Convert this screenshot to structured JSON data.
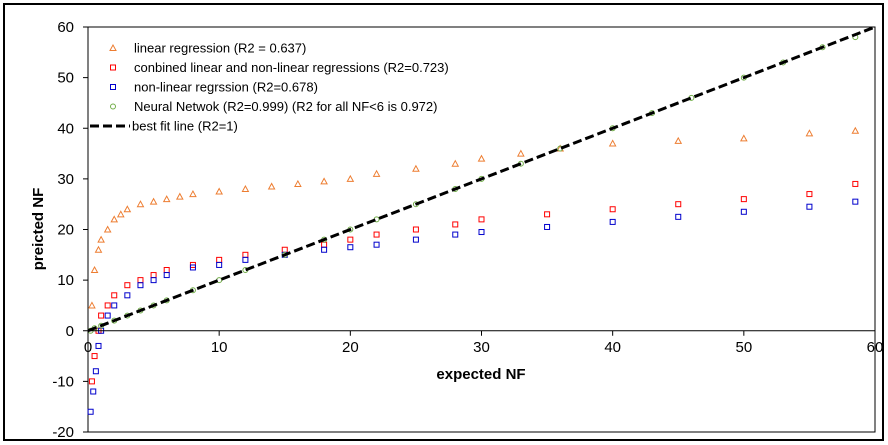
{
  "chart_data": {
    "type": "scatter",
    "title": "",
    "xlabel": "expected NF",
    "ylabel": "preicted NF",
    "xlim": [
      0,
      60
    ],
    "ylim": [
      -20,
      60
    ],
    "x_ticks": [
      0,
      10,
      20,
      30,
      40,
      50,
      60
    ],
    "y_ticks": [
      -20,
      -10,
      0,
      10,
      20,
      30,
      40,
      50,
      60
    ],
    "grid": false,
    "legend_position": "top-left",
    "series": [
      {
        "name": "linear regression (R2 = 0.637)",
        "color": "#ED7D31",
        "marker": "triangle",
        "points": [
          [
            0.3,
            5
          ],
          [
            0.5,
            12
          ],
          [
            0.8,
            16
          ],
          [
            1,
            18
          ],
          [
            1.5,
            20
          ],
          [
            2,
            22
          ],
          [
            2.5,
            23
          ],
          [
            3,
            24
          ],
          [
            4,
            25
          ],
          [
            5,
            25.5
          ],
          [
            6,
            26
          ],
          [
            7,
            26.5
          ],
          [
            8,
            27
          ],
          [
            10,
            27.5
          ],
          [
            12,
            28
          ],
          [
            14,
            28.5
          ],
          [
            16,
            29
          ],
          [
            18,
            29.5
          ],
          [
            20,
            30
          ],
          [
            22,
            31
          ],
          [
            25,
            32
          ],
          [
            28,
            33
          ],
          [
            30,
            34
          ],
          [
            33,
            35
          ],
          [
            36,
            36
          ],
          [
            40,
            37
          ],
          [
            45,
            37.5
          ],
          [
            50,
            38
          ],
          [
            55,
            39
          ],
          [
            58.5,
            39.5
          ]
        ]
      },
      {
        "name": "conbined linear and non-linear regressions (R2=0.723)",
        "color": "#FF0000",
        "marker": "square",
        "points": [
          [
            0.3,
            -10
          ],
          [
            0.5,
            -5
          ],
          [
            0.8,
            0
          ],
          [
            1,
            3
          ],
          [
            1.5,
            5
          ],
          [
            2,
            7
          ],
          [
            3,
            9
          ],
          [
            4,
            10
          ],
          [
            5,
            11
          ],
          [
            6,
            12
          ],
          [
            8,
            13
          ],
          [
            10,
            14
          ],
          [
            12,
            15
          ],
          [
            15,
            16
          ],
          [
            18,
            17
          ],
          [
            20,
            18
          ],
          [
            22,
            19
          ],
          [
            25,
            20
          ],
          [
            28,
            21
          ],
          [
            30,
            22
          ],
          [
            35,
            23
          ],
          [
            40,
            24
          ],
          [
            45,
            25
          ],
          [
            50,
            26
          ],
          [
            55,
            27
          ],
          [
            58.5,
            29
          ]
        ]
      },
      {
        "name": "non-linear regrssion (R2=0.678)",
        "color": "#0000CC",
        "marker": "square",
        "points": [
          [
            0.2,
            -16
          ],
          [
            0.4,
            -12
          ],
          [
            0.6,
            -8
          ],
          [
            0.8,
            -3
          ],
          [
            1,
            0
          ],
          [
            1.5,
            3
          ],
          [
            2,
            5
          ],
          [
            3,
            7
          ],
          [
            4,
            9
          ],
          [
            5,
            10
          ],
          [
            6,
            11
          ],
          [
            8,
            12.5
          ],
          [
            10,
            13
          ],
          [
            12,
            14
          ],
          [
            15,
            15
          ],
          [
            18,
            16
          ],
          [
            20,
            16.5
          ],
          [
            22,
            17
          ],
          [
            25,
            18
          ],
          [
            28,
            19
          ],
          [
            30,
            19.5
          ],
          [
            35,
            20.5
          ],
          [
            40,
            21.5
          ],
          [
            45,
            22.5
          ],
          [
            50,
            23.5
          ],
          [
            55,
            24.5
          ],
          [
            58.5,
            25.5
          ]
        ]
      },
      {
        "name": "Neural Netwok (R2=0.999) (R2 for all NF<6 is 0.972)",
        "color": "#70AD47",
        "marker": "circle",
        "points": [
          [
            0.2,
            0
          ],
          [
            0.5,
            0.5
          ],
          [
            1,
            1
          ],
          [
            2,
            2
          ],
          [
            3,
            3
          ],
          [
            4,
            4
          ],
          [
            5,
            5
          ],
          [
            6,
            6
          ],
          [
            8,
            8
          ],
          [
            10,
            10
          ],
          [
            12,
            12
          ],
          [
            15,
            15
          ],
          [
            18,
            18
          ],
          [
            20,
            20
          ],
          [
            22,
            22
          ],
          [
            25,
            25
          ],
          [
            28,
            28
          ],
          [
            30,
            30
          ],
          [
            33,
            33
          ],
          [
            36,
            36
          ],
          [
            40,
            40
          ],
          [
            43,
            43
          ],
          [
            46,
            46
          ],
          [
            50,
            50
          ],
          [
            53,
            53
          ],
          [
            56,
            56
          ],
          [
            58.5,
            58
          ]
        ]
      },
      {
        "name": "best fit line (R2=1)",
        "color": "#000000",
        "style": "dashed",
        "points": [
          [
            0,
            0
          ],
          [
            60,
            60
          ]
        ]
      }
    ]
  }
}
